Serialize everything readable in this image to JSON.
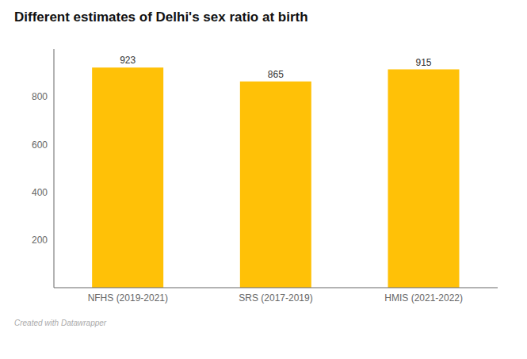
{
  "chart_data": {
    "type": "bar",
    "title": "Different estimates of Delhi's sex ratio at birth",
    "footer": "Created with Datawrapper",
    "categories": [
      "NFHS (2019-2021)",
      "SRS (2017-2019)",
      "HMIS (2021-2022)"
    ],
    "values": [
      923,
      865,
      915
    ],
    "color": "#FFC107",
    "ylim": [
      0,
      1000
    ],
    "yticks": [
      200,
      400,
      600,
      800
    ],
    "grid": false,
    "data_labels": true
  }
}
